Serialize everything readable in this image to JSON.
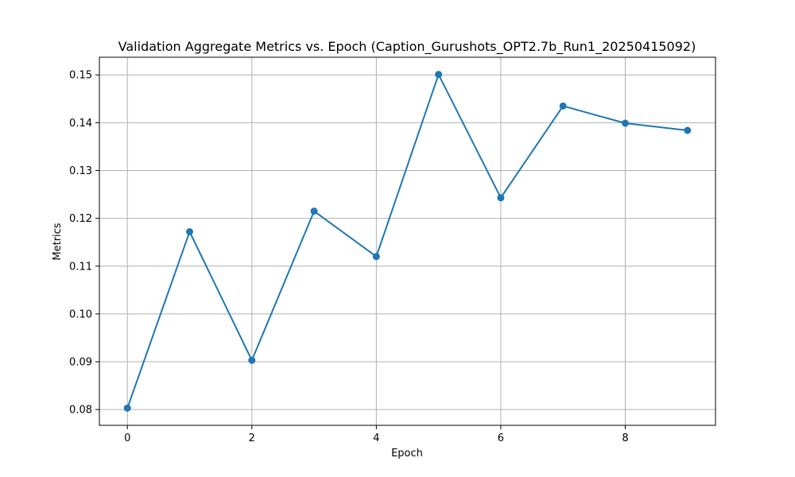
{
  "chart_data": {
    "type": "line",
    "title": "Validation Aggregate Metrics vs. Epoch (Caption_Gurushots_OPT2.7b_Run1_20250415092)",
    "xlabel": "Epoch",
    "ylabel": "Metrics",
    "x": [
      0,
      1,
      2,
      3,
      4,
      5,
      6,
      7,
      8,
      9
    ],
    "series": [
      {
        "values": [
          0.0803,
          0.1172,
          0.0903,
          0.1215,
          0.112,
          0.1501,
          0.1243,
          0.1435,
          0.1399,
          0.1384
        ],
        "color": "#1f77b4",
        "marker": "circle"
      }
    ],
    "xlim": [
      -0.45,
      9.45
    ],
    "ylim": [
      0.0767,
      0.1537
    ],
    "xticks": [
      0,
      2,
      4,
      6,
      8
    ],
    "xtick_labels": [
      "0",
      "2",
      "4",
      "6",
      "8"
    ],
    "yticks": [
      0.08,
      0.09,
      0.1,
      0.11,
      0.12,
      0.13,
      0.14,
      0.15
    ],
    "ytick_labels": [
      "0.08",
      "0.09",
      "0.10",
      "0.11",
      "0.12",
      "0.13",
      "0.14",
      "0.15"
    ],
    "grid": true,
    "grid_color": "#b0b0b0",
    "legend": "none"
  }
}
